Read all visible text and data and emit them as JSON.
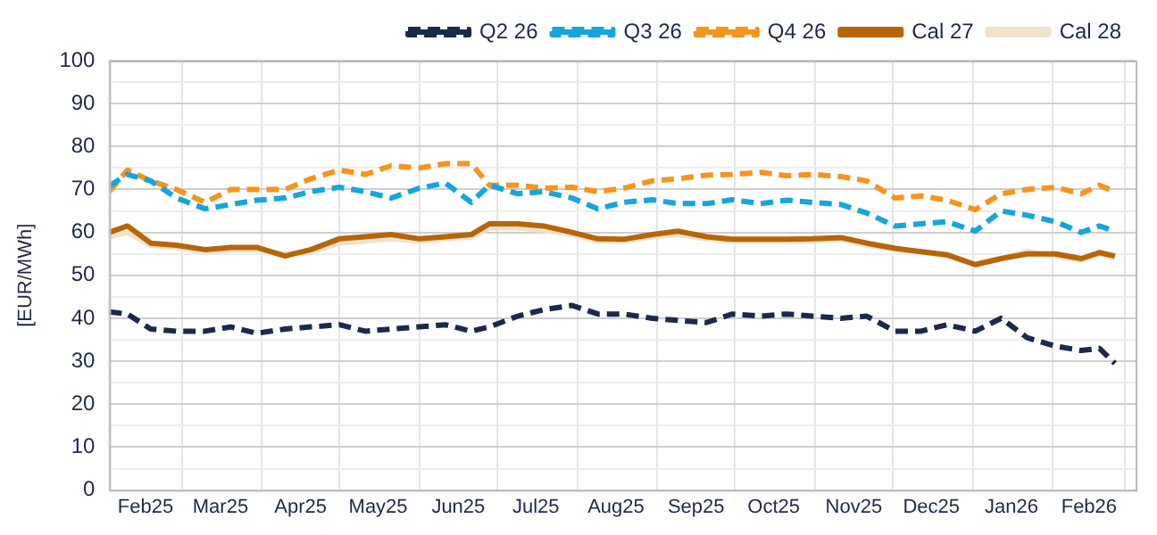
{
  "chart_data": {
    "type": "line",
    "ylabel": "[EUR/MWh]",
    "x": [
      "2025-02-01",
      "2025-02-08",
      "2025-02-17",
      "2025-02-27",
      "2025-03-10",
      "2025-03-20",
      "2025-03-30",
      "2025-04-10",
      "2025-04-20",
      "2025-05-01",
      "2025-05-11",
      "2025-05-21",
      "2025-06-01",
      "2025-06-11",
      "2025-06-21",
      "2025-06-28",
      "2025-07-09",
      "2025-07-19",
      "2025-07-30",
      "2025-08-09",
      "2025-08-19",
      "2025-08-30",
      "2025-09-09",
      "2025-09-20",
      "2025-09-30",
      "2025-10-11",
      "2025-10-21",
      "2025-10-31",
      "2025-11-11",
      "2025-11-21",
      "2025-12-02",
      "2025-12-12",
      "2025-12-22",
      "2026-01-02",
      "2026-01-12",
      "2026-01-22",
      "2026-02-02",
      "2026-02-12",
      "2026-02-19",
      "2026-02-25"
    ],
    "series": [
      {
        "name": "Q2 26",
        "color": "#1b2a4a",
        "line_style": "dashed",
        "values": [
          41.5,
          41,
          37.5,
          37,
          37,
          38,
          36.5,
          37.5,
          38,
          38.5,
          37,
          37.5,
          38,
          38.5,
          37,
          38,
          40.5,
          42,
          43,
          41,
          41,
          40,
          39.5,
          39,
          41,
          40.5,
          41,
          40.5,
          40,
          40.5,
          37,
          37,
          38.5,
          37,
          40,
          35.5,
          33.5,
          32.5,
          33,
          29.5
        ]
      },
      {
        "name": "Q3 26",
        "color": "#16a6dd",
        "line_style": "dashed",
        "values": [
          70.8,
          73.5,
          72,
          68,
          65.5,
          66.5,
          67.5,
          68,
          69.5,
          70.5,
          69.5,
          68,
          70.3,
          71.5,
          67,
          71,
          69,
          69.5,
          68,
          65.5,
          67,
          67.6,
          66.7,
          66.7,
          67.6,
          66.7,
          67.5,
          67,
          66.5,
          64.5,
          61.5,
          62,
          62.5,
          60.3,
          65,
          64,
          62.5,
          60,
          61.5,
          60.3
        ]
      },
      {
        "name": "Q4 26",
        "color": "#f7941d",
        "line_style": "dashed",
        "values": [
          69.5,
          74.5,
          72,
          70,
          67,
          70,
          70,
          70,
          72.5,
          74.5,
          73.5,
          75.5,
          75,
          76,
          76,
          71,
          71,
          70.3,
          70.5,
          69.5,
          70.3,
          72,
          72.5,
          73.3,
          73.5,
          74,
          73.2,
          73.5,
          73,
          72,
          68,
          68.5,
          67.5,
          65.3,
          69,
          70,
          70.5,
          69,
          71,
          69.5
        ]
      },
      {
        "name": "Cal 27",
        "color": "#b8650a",
        "line_style": "solid",
        "values": [
          60,
          61.5,
          57.5,
          57,
          56,
          56.5,
          56.5,
          54.5,
          56,
          58.5,
          59,
          59.5,
          58.5,
          59,
          59.5,
          62,
          62,
          61.5,
          60,
          58.5,
          58.4,
          59.5,
          60.3,
          59,
          58.4,
          58.4,
          58.4,
          58.5,
          58.8,
          57.5,
          56.3,
          55.5,
          54.8,
          52.5,
          53.9,
          55,
          55,
          53.9,
          55.3,
          54.5
        ]
      },
      {
        "name": "Cal 28",
        "color": "#efe3cc",
        "line_style": "solid",
        "values": [
          59,
          60,
          57,
          56.5,
          55.5,
          56,
          56,
          55,
          55.5,
          57.5,
          58,
          58.5,
          58,
          58.5,
          59,
          61,
          61,
          60.5,
          59.5,
          58,
          58,
          59,
          59.5,
          58.5,
          58,
          58,
          58,
          58,
          58.5,
          57,
          56,
          55.5,
          54.5,
          52.5,
          54,
          55.5,
          54.5,
          53.5,
          55,
          54
        ]
      }
    ],
    "xlim": [
      "2025-02-01",
      "2026-03-05"
    ],
    "xticks": [
      {
        "value": "2025-02-01",
        "label": null
      },
      {
        "value": "2025-02-15",
        "label": "Feb25"
      },
      {
        "value": "2025-03-01",
        "label": null
      },
      {
        "value": "2025-03-16",
        "label": "Mar25"
      },
      {
        "value": "2025-04-01",
        "label": null
      },
      {
        "value": "2025-04-16",
        "label": "Apr25"
      },
      {
        "value": "2025-05-01",
        "label": null
      },
      {
        "value": "2025-05-16",
        "label": "May25"
      },
      {
        "value": "2025-06-01",
        "label": null
      },
      {
        "value": "2025-06-16",
        "label": "Jun25"
      },
      {
        "value": "2025-07-01",
        "label": null
      },
      {
        "value": "2025-07-16",
        "label": "Jul25"
      },
      {
        "value": "2025-08-01",
        "label": null
      },
      {
        "value": "2025-08-16",
        "label": "Aug25"
      },
      {
        "value": "2025-09-01",
        "label": null
      },
      {
        "value": "2025-09-16",
        "label": "Sep25"
      },
      {
        "value": "2025-10-01",
        "label": null
      },
      {
        "value": "2025-10-16",
        "label": "Oct25"
      },
      {
        "value": "2025-11-01",
        "label": null
      },
      {
        "value": "2025-11-16",
        "label": "Nov25"
      },
      {
        "value": "2025-12-01",
        "label": null
      },
      {
        "value": "2025-12-16",
        "label": "Dec25"
      },
      {
        "value": "2026-01-01",
        "label": null
      },
      {
        "value": "2026-01-16",
        "label": "Jan26"
      },
      {
        "value": "2026-02-01",
        "label": null
      },
      {
        "value": "2026-02-15",
        "label": "Feb26"
      },
      {
        "value": "2026-03-01",
        "label": null
      }
    ],
    "ylim": [
      0,
      100
    ],
    "yticks": [
      0,
      {
        "value": 5,
        "label": null
      },
      10,
      {
        "value": 15,
        "label": null
      },
      20,
      {
        "value": 25,
        "label": null
      },
      30,
      {
        "value": 35,
        "label": null
      },
      40,
      {
        "value": 45,
        "label": null
      },
      50,
      {
        "value": 55,
        "label": null
      },
      60,
      {
        "value": 65,
        "label": null
      },
      70,
      {
        "value": 75,
        "label": null
      },
      80,
      {
        "value": 85,
        "label": null
      },
      90,
      {
        "value": 95,
        "label": null
      },
      100
    ],
    "grid": true,
    "legend": "top right",
    "marker": "none"
  }
}
